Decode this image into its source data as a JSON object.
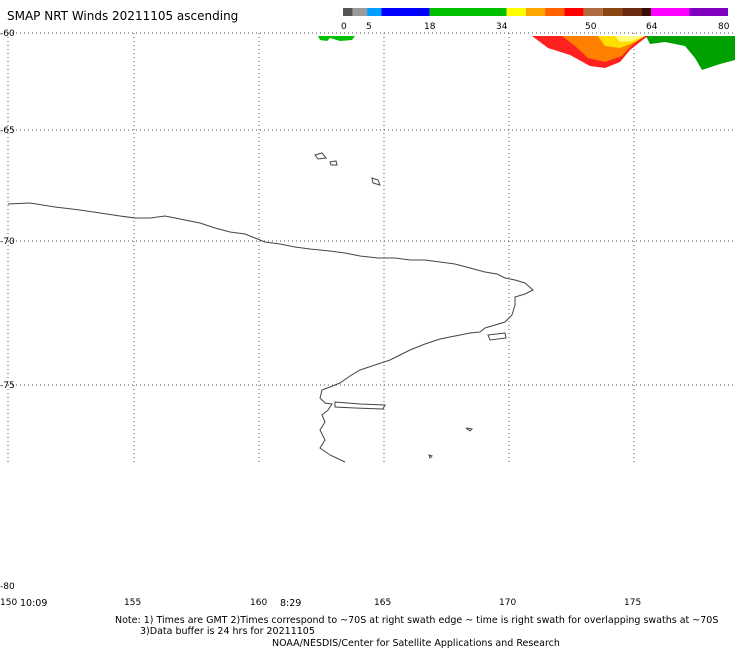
{
  "title": "SMAP NRT Winds 20211105 ascending",
  "colorbar": {
    "ticks": [
      "0",
      "5",
      "18",
      "34",
      "50",
      "64",
      "80"
    ],
    "segments": [
      {
        "from": 0,
        "to": 2,
        "color": "#555555"
      },
      {
        "from": 2,
        "to": 5,
        "color": "#9a9a9a"
      },
      {
        "from": 5,
        "to": 8,
        "color": "#00a0ff"
      },
      {
        "from": 8,
        "to": 18,
        "color": "#0000ff"
      },
      {
        "from": 18,
        "to": 34,
        "color": "#00c000"
      },
      {
        "from": 34,
        "to": 38,
        "color": "#ffff00"
      },
      {
        "from": 38,
        "to": 42,
        "color": "#ffa500"
      },
      {
        "from": 42,
        "to": 46,
        "color": "#ff6000"
      },
      {
        "from": 46,
        "to": 50,
        "color": "#ff0000"
      },
      {
        "from": 50,
        "to": 54,
        "color": "#b06a40"
      },
      {
        "from": 54,
        "to": 58,
        "color": "#8b4513"
      },
      {
        "from": 58,
        "to": 62,
        "color": "#6b2a10"
      },
      {
        "from": 62,
        "to": 64,
        "color": "#3a0a00"
      },
      {
        "from": 64,
        "to": 72,
        "color": "#ff00ff"
      },
      {
        "from": 72,
        "to": 80,
        "color": "#8000c0"
      }
    ]
  },
  "axes": {
    "lat_labels": [
      "-60",
      "-65",
      "-70",
      "-75",
      "-80"
    ],
    "lon_labels": [
      "150",
      "155",
      "160",
      "165",
      "170",
      "175"
    ]
  },
  "swath_times": [
    "10:09",
    "8:29"
  ],
  "notes": [
    "Note: 1) Times are GMT 2)Times correspond to ~70S at right swath edge ~ time is right swath for overlapping swaths at ~70S",
    "3)Data buffer is 24 hrs for 20211105",
    "NOAA/NESDIS/Center for Satellite Applications and Research"
  ],
  "colors": {
    "grid": "#555555",
    "coast": "#444444"
  }
}
